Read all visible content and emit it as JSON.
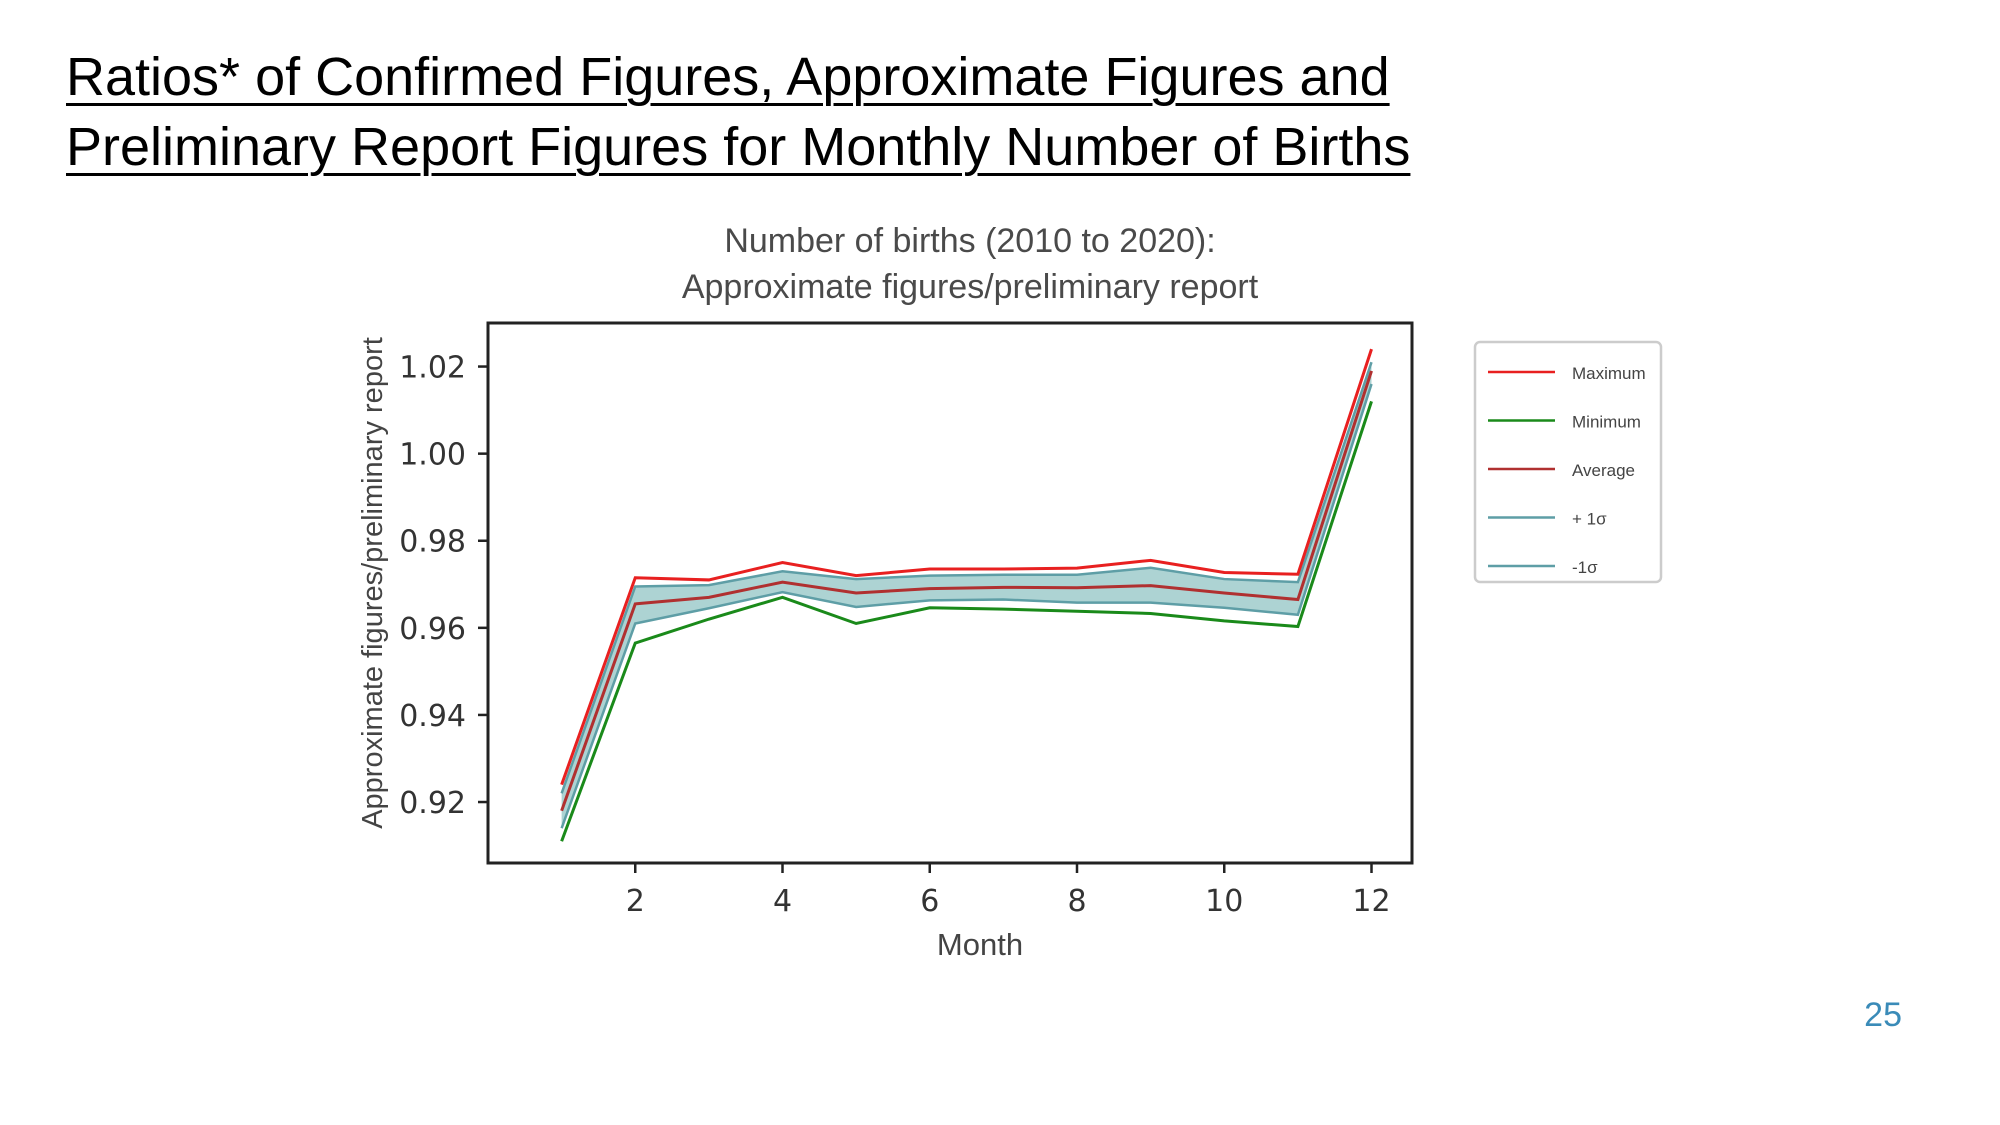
{
  "slide": {
    "title_line1": "Ratios* of Confirmed Figures, Approximate Figures and",
    "title_line2": "Preliminary Report Figures for Monthly Number of Births",
    "page_number": "25"
  },
  "chart_data": {
    "type": "line",
    "title_line1": "Number of births (2010 to 2020):",
    "title_line2": "Approximate figures/preliminary report",
    "xlabel": "Month",
    "ylabel": "Approximate figures/preliminary report",
    "x": [
      1,
      2,
      3,
      4,
      5,
      6,
      7,
      8,
      9,
      10,
      11,
      12
    ],
    "xlim": [
      0,
      12.55
    ],
    "ylim": [
      0.906,
      1.03
    ],
    "xticks": [
      2,
      4,
      6,
      8,
      10,
      12
    ],
    "yticks": [
      0.92,
      0.94,
      0.96,
      0.98,
      1.0,
      1.02
    ],
    "ytick_labels": [
      "0.92",
      "0.94",
      "0.96",
      "0.98",
      "1.00",
      "1.02"
    ],
    "grid": false,
    "legend_position": "right, outside plot",
    "band": {
      "between": [
        "+ 1σ",
        "-1σ"
      ],
      "color": "#6aaeae"
    },
    "series": [
      {
        "name": "Maximum",
        "color": "#e82020",
        "values": [
          0.924,
          0.9715,
          0.971,
          0.975,
          0.972,
          0.9735,
          0.9735,
          0.9737,
          0.9755,
          0.9727,
          0.9723,
          1.024
        ]
      },
      {
        "name": "Minimum",
        "color": "#1a8a1a",
        "values": [
          0.911,
          0.9565,
          0.962,
          0.967,
          0.961,
          0.9646,
          0.9643,
          0.9638,
          0.9633,
          0.9616,
          0.9603,
          1.012
        ]
      },
      {
        "name": "Average",
        "color": "#b03030",
        "values": [
          0.918,
          0.9655,
          0.967,
          0.9705,
          0.968,
          0.969,
          0.9693,
          0.9692,
          0.9697,
          0.968,
          0.9665,
          1.019
        ]
      },
      {
        "name": "+ 1σ",
        "color": "#5e9ea6",
        "values": [
          0.922,
          0.9695,
          0.9698,
          0.973,
          0.9712,
          0.972,
          0.9722,
          0.9722,
          0.9738,
          0.9712,
          0.9705,
          1.021
        ]
      },
      {
        "name": "-1σ",
        "color": "#5e9ea6",
        "values": [
          0.914,
          0.961,
          0.9645,
          0.9682,
          0.9648,
          0.9663,
          0.9665,
          0.9658,
          0.9658,
          0.9646,
          0.963,
          1.016
        ]
      }
    ]
  }
}
